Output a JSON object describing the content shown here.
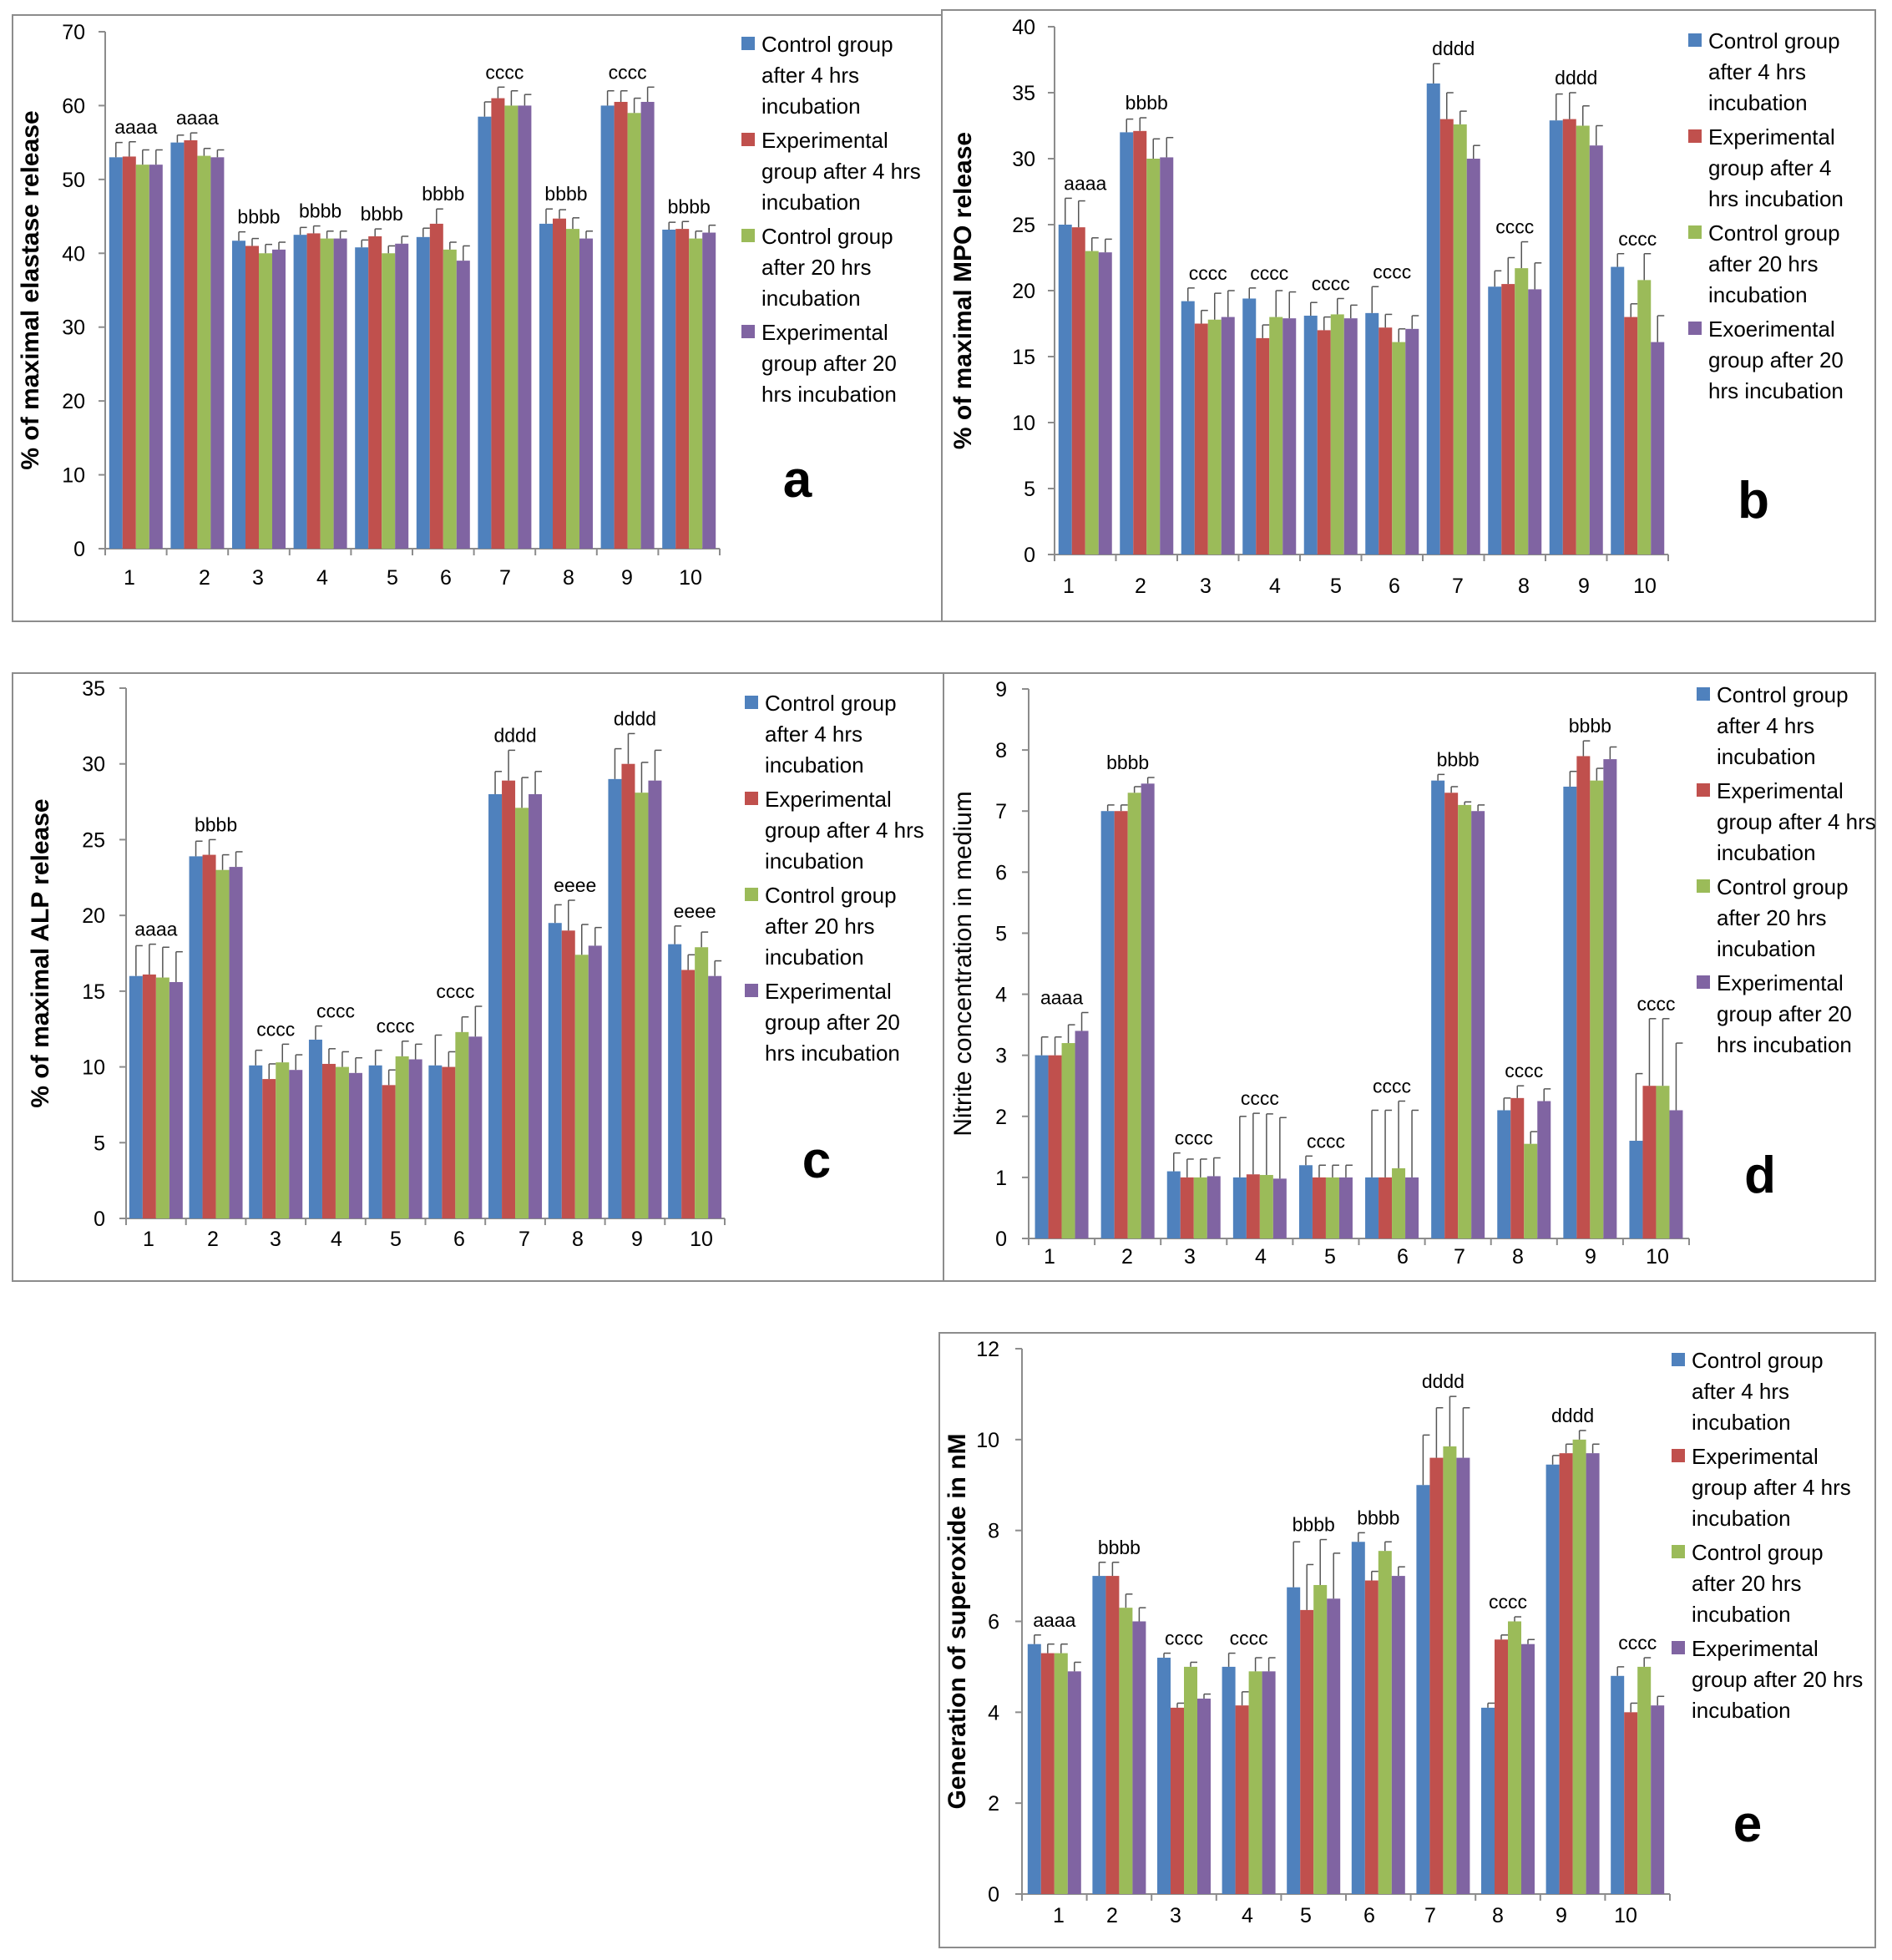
{
  "colors": [
    "#4F81BD",
    "#C0504D",
    "#9BBB59",
    "#8064A2"
  ],
  "chart_data": [
    {
      "type": "bar",
      "panel": "a",
      "ylabel": "% of maximal elastase release",
      "ylim": [
        0,
        70
      ],
      "ytick_step": 10,
      "categories": [
        "1",
        "2",
        "3",
        "4",
        "5",
        "6",
        "7",
        "8",
        "9",
        "10"
      ],
      "series": [
        {
          "name": "Control group after 4 hrs incubation",
          "values": [
            53,
            55,
            41.7,
            42.5,
            40.8,
            42.2,
            58.5,
            44.0,
            60.0,
            43.2
          ],
          "errors": [
            2.0,
            1.0,
            1.2,
            1.0,
            1.0,
            1.2,
            2.0,
            2.0,
            2.0,
            1.0
          ]
        },
        {
          "name": "Experimental group after 4 hrs incubation",
          "values": [
            53.1,
            55.3,
            41.0,
            42.7,
            42.3,
            44.0,
            61.0,
            44.7,
            60.5,
            43.3
          ],
          "errors": [
            2.0,
            1.0,
            1.0,
            1.0,
            1.0,
            2.0,
            1.5,
            1.2,
            1.5,
            1.0
          ]
        },
        {
          "name": "Control group after 20 hrs incubation",
          "values": [
            52,
            53.2,
            40.0,
            42.0,
            40.0,
            40.5,
            60.0,
            43.3,
            59.0,
            42.0
          ],
          "errors": [
            2.0,
            1.0,
            1.2,
            1.0,
            1.0,
            1.0,
            2.0,
            1.5,
            2.0,
            1.0
          ]
        },
        {
          "name": "Experimental group after 20 hrs incubation",
          "values": [
            52,
            53.0,
            40.5,
            42.0,
            41.3,
            39.0,
            60.0,
            42.0,
            60.5,
            42.8
          ],
          "errors": [
            2.0,
            1.0,
            1.0,
            1.0,
            1.0,
            2.0,
            1.5,
            1.0,
            2.0,
            1.0
          ]
        }
      ],
      "labels": [
        "aaaa",
        "aaaa",
        "bbbb",
        "bbbb",
        "bbbb",
        "bbbb",
        "cccc",
        "bbbb",
        "cccc",
        "bbbb"
      ],
      "legend_lines": [
        [
          "Control group",
          "after 4 hrs",
          "incubation"
        ],
        [
          "Experimental",
          "group after 4 hrs",
          "incubation"
        ],
        [
          "Control group",
          "after 20 hrs",
          "incubation"
        ],
        [
          "Experimental",
          "group after 20",
          "hrs incubation"
        ]
      ]
    },
    {
      "type": "bar",
      "panel": "b",
      "ylabel": "% of maximal MPO release",
      "ylim": [
        0,
        40
      ],
      "ytick_step": 5,
      "categories": [
        "1",
        "2",
        "3",
        "4",
        "5",
        "6",
        "7",
        "8",
        "9",
        "10"
      ],
      "series": [
        {
          "name": "Control group after 4 hrs incubation",
          "values": [
            25,
            32,
            19.2,
            19.4,
            18.1,
            18.3,
            35.7,
            20.3,
            32.9,
            21.8
          ],
          "errors": [
            2.0,
            1.0,
            1.0,
            0.8,
            1.0,
            2.0,
            1.5,
            1.2,
            2.0,
            1.0
          ]
        },
        {
          "name": "Experimental group after 4 hrs incubation",
          "values": [
            24.8,
            32.1,
            17.5,
            16.4,
            17.0,
            17.2,
            33.0,
            20.5,
            33.0,
            18.0
          ],
          "errors": [
            2.0,
            1.0,
            1.0,
            1.0,
            1.0,
            1.0,
            2.0,
            2.0,
            2.0,
            1.0
          ]
        },
        {
          "name": "Control group after 20 hrs incubation",
          "values": [
            23,
            30,
            17.8,
            18.0,
            18.2,
            16.1,
            32.6,
            21.7,
            32.5,
            20.8
          ],
          "errors": [
            1.0,
            1.5,
            2.0,
            2.0,
            1.2,
            1.0,
            1.0,
            2.0,
            1.5,
            2.0
          ]
        },
        {
          "name": "Exoerimental group after 20 hrs incubation",
          "values": [
            22.9,
            30.1,
            18.0,
            17.9,
            17.9,
            17.1,
            30.0,
            20.1,
            31.0,
            16.1
          ],
          "errors": [
            1.0,
            1.5,
            2.0,
            2.0,
            1.0,
            1.0,
            1.0,
            2.0,
            1.5,
            2.0
          ]
        }
      ],
      "labels": [
        "aaaa",
        "bbbb",
        "cccc",
        "cccc",
        "cccc",
        "cccc",
        "dddd",
        "cccc",
        "dddd",
        "cccc"
      ],
      "legend_lines": [
        [
          "Control group",
          "after 4 hrs",
          "incubation"
        ],
        [
          "Experimental",
          "group after 4",
          "hrs incubation"
        ],
        [
          "Control group",
          "after 20 hrs",
          "incubation"
        ],
        [
          "Exoerimental",
          "group after 20",
          "hrs incubation"
        ]
      ]
    },
    {
      "type": "bar",
      "panel": "c",
      "ylabel": "% of maximal ALP release",
      "ylim": [
        0,
        35
      ],
      "ytick_step": 5,
      "categories": [
        "1",
        "2",
        "3",
        "4",
        "5",
        "6",
        "7",
        "8",
        "9",
        "10"
      ],
      "series": [
        {
          "name": "Control group after 4 hrs incubation",
          "values": [
            16,
            23.9,
            10.1,
            11.8,
            10.1,
            10.1,
            28.0,
            19.5,
            29.0,
            18.1
          ],
          "errors": [
            2.0,
            1.0,
            1.0,
            0.9,
            1.0,
            2.0,
            1.5,
            1.2,
            2.0,
            1.2
          ]
        },
        {
          "name": "Experimental group after 4 hrs incubation",
          "values": [
            16.1,
            24.0,
            9.2,
            10.2,
            8.8,
            10.0,
            28.9,
            19.0,
            30.0,
            16.4
          ],
          "errors": [
            2.0,
            1.0,
            1.0,
            1.0,
            1.0,
            1.0,
            2.0,
            2.0,
            2.0,
            1.0
          ]
        },
        {
          "name": "Control group after 20 hrs incubation",
          "values": [
            15.9,
            23.0,
            10.3,
            10.0,
            10.7,
            12.3,
            27.1,
            17.4,
            28.1,
            17.9
          ],
          "errors": [
            2.0,
            1.0,
            1.2,
            1.0,
            1.0,
            1.0,
            2.0,
            2.0,
            2.0,
            1.0
          ]
        },
        {
          "name": "Experimental group after 20 hrs incubation",
          "values": [
            15.6,
            23.2,
            9.8,
            9.6,
            10.5,
            12.0,
            28.0,
            18.0,
            28.9,
            16.0
          ],
          "errors": [
            2.0,
            1.0,
            1.0,
            1.0,
            1.0,
            2.0,
            1.5,
            1.2,
            2.0,
            1.0
          ]
        }
      ],
      "labels": [
        "aaaa",
        "bbbb",
        "cccc",
        "cccc",
        "cccc",
        "cccc",
        "dddd",
        "eeee",
        "dddd",
        "eeee"
      ],
      "legend_lines": [
        [
          "Control group",
          "after 4 hrs",
          "incubation"
        ],
        [
          "Experimental",
          "group after 4 hrs",
          "incubation"
        ],
        [
          "Control group",
          "after 20 hrs",
          "incubation"
        ],
        [
          "Experimental",
          "group after 20",
          "hrs incubation"
        ]
      ]
    },
    {
      "type": "bar",
      "panel": "d",
      "ylabel": "Nitrite concentration in medium",
      "ylim": [
        0,
        9
      ],
      "ytick_step": 1,
      "categories": [
        "1",
        "2",
        "3",
        "4",
        "5",
        "6",
        "7",
        "8",
        "9",
        "10"
      ],
      "series": [
        {
          "name": "Control group after 4 hrs incubation",
          "values": [
            3.0,
            7.0,
            1.1,
            1.0,
            1.2,
            1.0,
            7.5,
            2.1,
            7.4,
            1.6
          ],
          "errors": [
            0.3,
            0.1,
            0.3,
            1.0,
            0.15,
            1.1,
            0.1,
            0.2,
            0.25,
            1.1
          ]
        },
        {
          "name": "Experimental group after 4 hrs incubation",
          "values": [
            3.0,
            7.0,
            1.0,
            1.05,
            1.0,
            1.0,
            7.3,
            2.3,
            7.9,
            2.5
          ],
          "errors": [
            0.3,
            0.1,
            0.3,
            1.0,
            0.2,
            1.1,
            0.1,
            0.2,
            0.25,
            1.1
          ]
        },
        {
          "name": "Control group after 20 hrs incubation",
          "values": [
            3.2,
            7.3,
            1.0,
            1.04,
            1.0,
            1.15,
            7.1,
            1.55,
            7.5,
            2.5
          ],
          "errors": [
            0.3,
            0.1,
            0.3,
            1.0,
            0.2,
            1.1,
            0.05,
            0.2,
            0.2,
            1.1
          ]
        },
        {
          "name": "Experimental group after 20 hrs incubation",
          "values": [
            3.4,
            7.45,
            1.02,
            0.98,
            1.0,
            1.0,
            7.0,
            2.25,
            7.85,
            2.1
          ],
          "errors": [
            0.3,
            0.1,
            0.3,
            1.0,
            0.2,
            1.1,
            0.1,
            0.2,
            0.2,
            1.1
          ]
        }
      ],
      "labels": [
        "aaaa",
        "bbbb",
        "cccc",
        "cccc",
        "cccc",
        "cccc",
        "bbbb",
        "cccc",
        "bbbb",
        "cccc"
      ],
      "legend_lines": [
        [
          "Control group",
          "after 4 hrs",
          "incubation"
        ],
        [
          "Experimental",
          "group after 4 hrs",
          "incubation"
        ],
        [
          "Control group",
          "after 20 hrs",
          "incubation"
        ],
        [
          "Experimental",
          "group after 20",
          "hrs incubation"
        ]
      ]
    },
    {
      "type": "bar",
      "panel": "e",
      "ylabel": "Generation of superoxide in nM",
      "ylim": [
        0,
        12
      ],
      "ytick_step": 2,
      "categories": [
        "1",
        "2",
        "3",
        "4",
        "5",
        "6",
        "7",
        "8",
        "9",
        "10"
      ],
      "series": [
        {
          "name": "Control group after 4 hrs incubation",
          "values": [
            5.5,
            7.0,
            5.2,
            5.0,
            6.75,
            7.75,
            9.0,
            4.1,
            9.45,
            4.8
          ],
          "errors": [
            0.2,
            0.3,
            0.1,
            0.3,
            1.0,
            0.2,
            1.1,
            0.1,
            0.2,
            0.2
          ]
        },
        {
          "name": "Experimental group after 4 hrs incubation",
          "values": [
            5.3,
            7.0,
            4.1,
            4.15,
            6.25,
            6.9,
            9.6,
            5.6,
            9.7,
            4.0
          ],
          "errors": [
            0.2,
            0.3,
            0.1,
            0.3,
            1.0,
            0.2,
            1.1,
            0.1,
            0.2,
            0.2
          ]
        },
        {
          "name": "Control group after 20 hrs incubation",
          "values": [
            5.3,
            6.3,
            5.0,
            4.9,
            6.8,
            7.55,
            9.85,
            6.0,
            10.0,
            5.0
          ],
          "errors": [
            0.2,
            0.3,
            0.1,
            0.3,
            1.0,
            0.2,
            1.1,
            0.1,
            0.2,
            0.2
          ]
        },
        {
          "name": "Experimental group after 20 hrs incubation",
          "values": [
            4.9,
            6.0,
            4.3,
            4.9,
            6.5,
            7.0,
            9.6,
            5.5,
            9.7,
            4.15
          ],
          "errors": [
            0.2,
            0.3,
            0.1,
            0.3,
            1.0,
            0.2,
            1.1,
            0.1,
            0.2,
            0.2
          ]
        }
      ],
      "labels": [
        "aaaa",
        "bbbb",
        "cccc",
        "cccc",
        "bbbb",
        "bbbb",
        "dddd",
        "cccc",
        "dddd",
        "cccc"
      ],
      "legend_lines": [
        [
          "Control group",
          "after 4 hrs",
          "incubation"
        ],
        [
          "Experimental",
          "group after 4 hrs",
          "incubation"
        ],
        [
          "Control group",
          "after 20 hrs",
          "incubation"
        ],
        [
          "Experimental",
          "group after 20 hrs",
          "incubation"
        ]
      ]
    }
  ]
}
